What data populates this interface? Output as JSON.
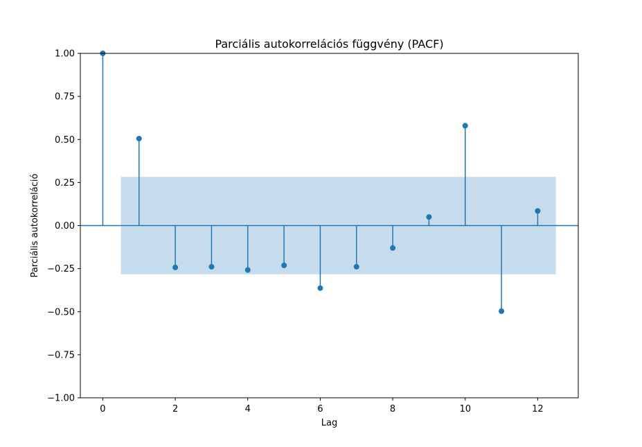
{
  "chart_data": {
    "type": "stem",
    "title": "Parciális autokorrelációs függvény (PACF)",
    "xlabel": "Lag",
    "ylabel": "Parciális autokorreláció",
    "x": [
      0,
      1,
      2,
      3,
      4,
      5,
      6,
      7,
      8,
      9,
      10,
      11,
      12
    ],
    "values": [
      1.0,
      0.505,
      -0.243,
      -0.239,
      -0.258,
      -0.231,
      -0.363,
      -0.239,
      -0.13,
      0.05,
      0.58,
      -0.497,
      0.085
    ],
    "confidence_band": {
      "x_range": [
        0.5,
        12.5
      ],
      "upper": 0.283,
      "lower": -0.283
    },
    "xlim": [
      -0.62,
      13.12
    ],
    "ylim": [
      -1.0,
      1.0
    ],
    "xticks": [
      0,
      2,
      4,
      6,
      8,
      10,
      12
    ],
    "xtick_labels": [
      "0",
      "2",
      "4",
      "6",
      "8",
      "10",
      "12"
    ],
    "yticks": [
      -1.0,
      -0.75,
      -0.5,
      -0.25,
      0.0,
      0.25,
      0.5,
      0.75,
      1.0
    ],
    "ytick_labels": [
      "−1.00",
      "−0.75",
      "−0.50",
      "−0.25",
      "0.00",
      "0.25",
      "0.50",
      "0.75",
      "1.00"
    ],
    "grid": false,
    "colors": {
      "series": "#1f77b4",
      "band": "#c6dbec",
      "axis": "#000000"
    }
  }
}
